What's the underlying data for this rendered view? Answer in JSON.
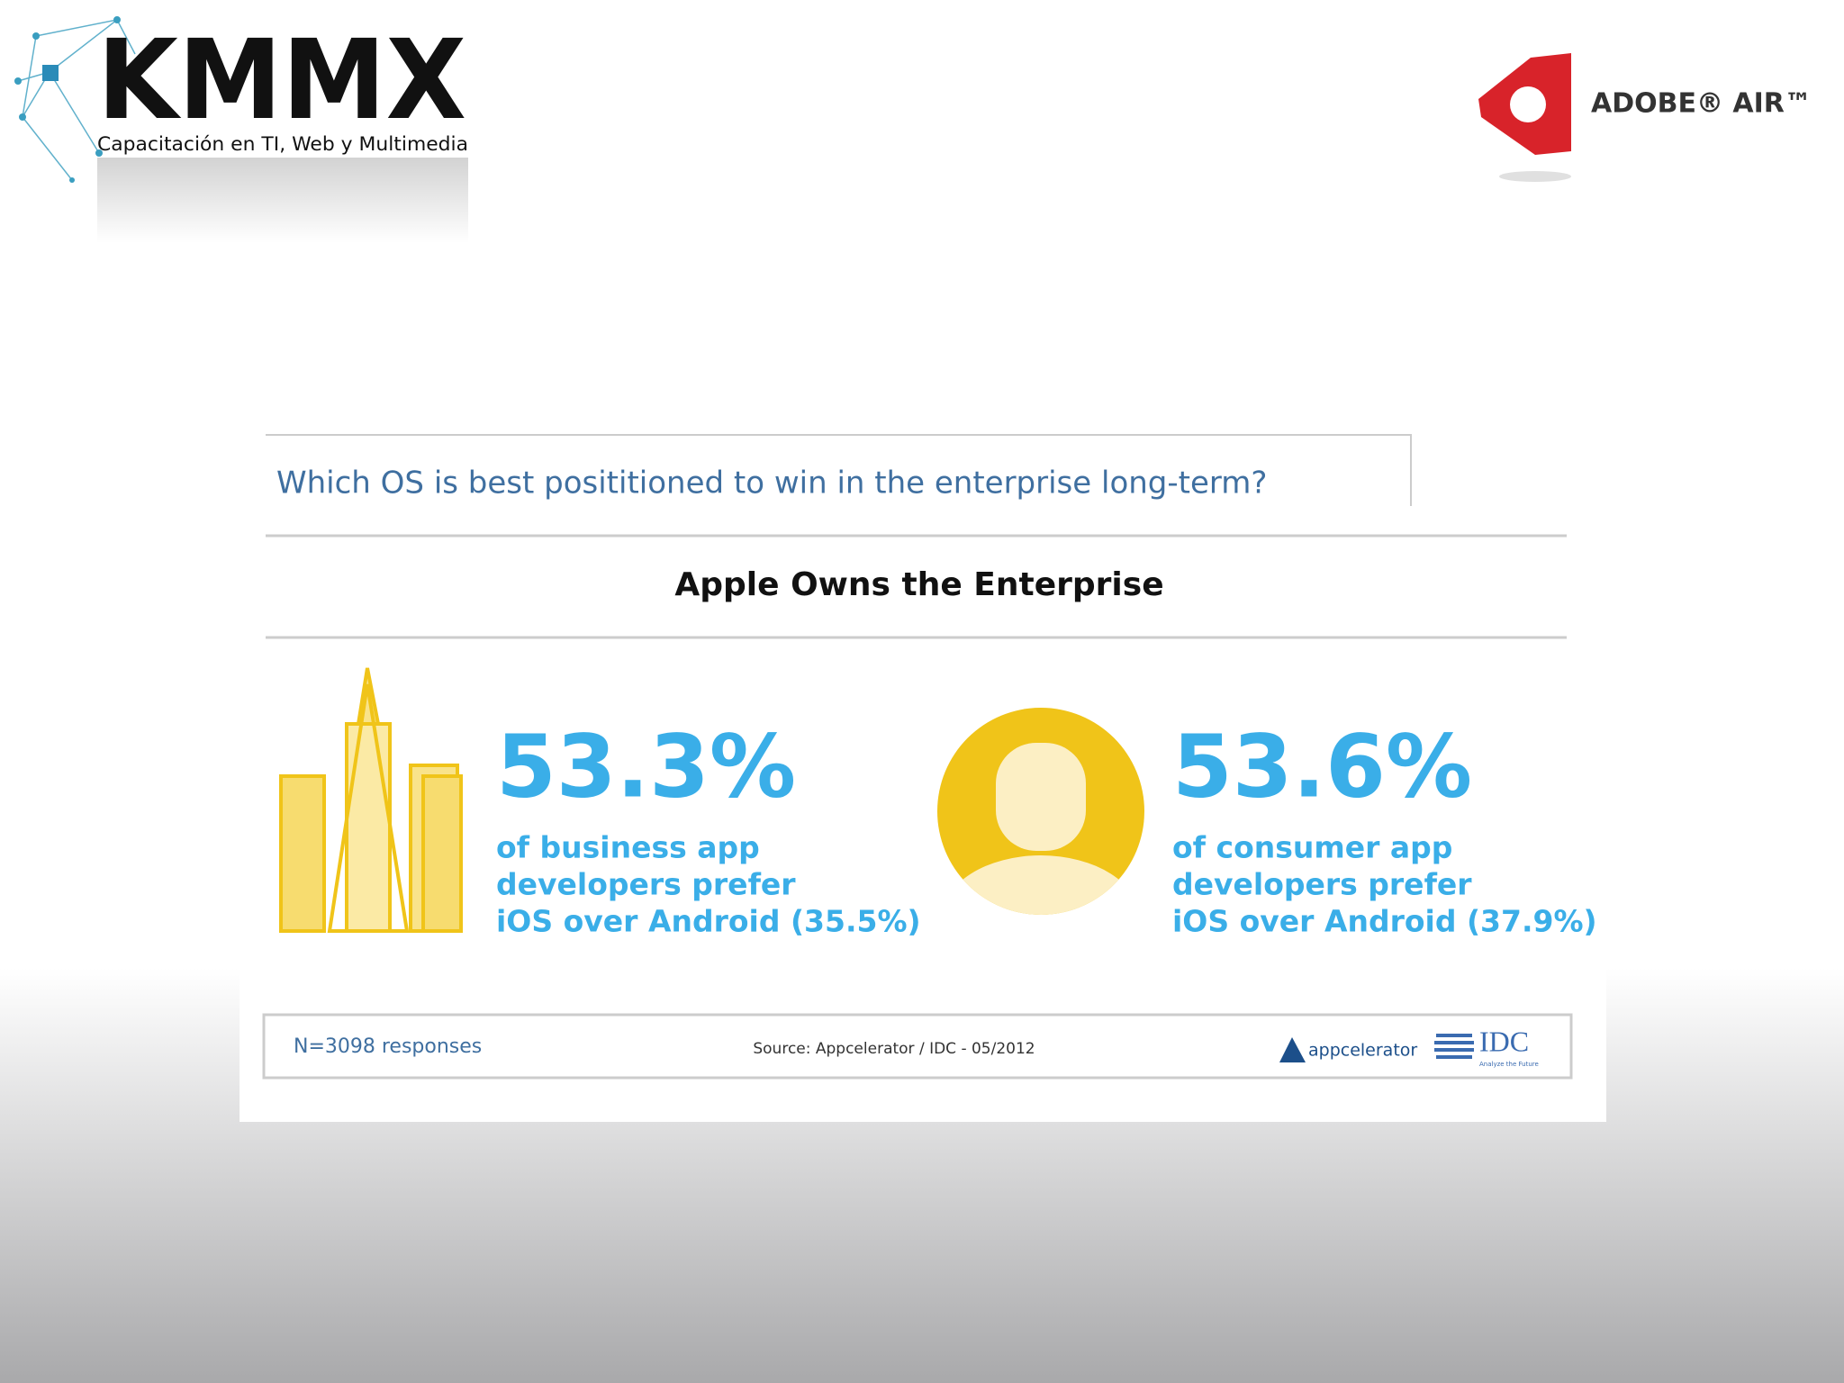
{
  "header": {
    "logo_left": {
      "name": "KMMX",
      "tagline": "Capacitación en TI, Web y Multimedia"
    },
    "logo_right": "ADOBE® AIR™"
  },
  "slide": {
    "question": "Which OS is best posititioned to win in the enterprise long-term?",
    "headline": "Apple Owns the Enterprise",
    "stats": [
      {
        "value": "53.3%",
        "lines": [
          "of business app",
          "developers prefer",
          "iOS over Android (35.5%)"
        ]
      },
      {
        "value": "53.6%",
        "lines": [
          "of consumer app",
          "developers prefer",
          "iOS over Android (37.9%)"
        ]
      }
    ],
    "footer": {
      "sample": "N=3098 responses",
      "source": "Source: Appcelerator / IDC - 05/2012",
      "logos": [
        "appcelerator",
        "IDC"
      ],
      "idc_tagline": "Analyze the Future"
    }
  }
}
